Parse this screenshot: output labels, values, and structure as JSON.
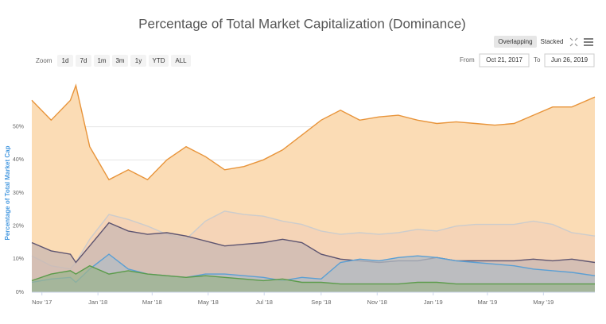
{
  "chart_data": {
    "type": "area",
    "title": "Percentage of Total Market Capitalization (Dominance)",
    "y_axis_label": "Percentage of Total Market Cap",
    "controls": {
      "zoom_label": "Zoom",
      "ranges": [
        "1d",
        "7d",
        "1m",
        "3m",
        "1y",
        "YTD",
        "ALL"
      ],
      "modes": [
        "Overlapping",
        "Stacked"
      ],
      "from_label": "From",
      "from": "Oct 21, 2017",
      "to_label": "To",
      "to": "Jun 26, 2019"
    },
    "x": [
      "2017-10-21",
      "2017-11-11",
      "2017-12-02",
      "2017-12-08",
      "2017-12-23",
      "2018-01-13",
      "2018-02-03",
      "2018-02-24",
      "2018-03-17",
      "2018-04-07",
      "2018-04-28",
      "2018-05-19",
      "2018-06-09",
      "2018-06-30",
      "2018-07-21",
      "2018-08-11",
      "2018-09-01",
      "2018-09-22",
      "2018-10-13",
      "2018-11-03",
      "2018-11-24",
      "2018-12-15",
      "2019-01-05",
      "2019-01-26",
      "2019-02-16",
      "2019-03-09",
      "2019-03-30",
      "2019-04-20",
      "2019-05-11",
      "2019-06-01",
      "2019-06-26"
    ],
    "xlim": [
      "2017-10-21",
      "2019-06-26"
    ],
    "xticks": [
      {
        "value": "2017-11-01",
        "label": "Nov '17"
      },
      {
        "value": "2018-01-01",
        "label": "Jan '18"
      },
      {
        "value": "2018-03-01",
        "label": "Mar '18"
      },
      {
        "value": "2018-05-01",
        "label": "May '18"
      },
      {
        "value": "2018-07-01",
        "label": "Jul '18"
      },
      {
        "value": "2018-09-01",
        "label": "Sep '18"
      },
      {
        "value": "2018-11-01",
        "label": "Nov '18"
      },
      {
        "value": "2019-01-01",
        "label": "Jan '19"
      },
      {
        "value": "2019-03-01",
        "label": "Mar '19"
      },
      {
        "value": "2019-05-01",
        "label": "May '19"
      }
    ],
    "ylim": [
      0,
      60
    ],
    "yticks": [
      {
        "value": 0,
        "label": "0%"
      },
      {
        "value": 10,
        "label": "10%"
      },
      {
        "value": 20,
        "label": "20%"
      },
      {
        "value": 30,
        "label": "30%"
      },
      {
        "value": 40,
        "label": "40%"
      },
      {
        "value": 50,
        "label": "50%"
      }
    ],
    "grid": true,
    "series": [
      {
        "color": "#e8943a",
        "fill": "#fbdcb5",
        "values": [
          58,
          52,
          58,
          62.5,
          44,
          34,
          37,
          34,
          40,
          44,
          41,
          37,
          38,
          40,
          43,
          47.5,
          52,
          55,
          52,
          53,
          53.5,
          52,
          51,
          51.5,
          51,
          50.5,
          51,
          53.5,
          56,
          56,
          59
        ]
      },
      {
        "color": "#cccccc",
        "fill": "#f3d2b8",
        "values": [
          11,
          8,
          7,
          9,
          16,
          23.5,
          22,
          20,
          17.5,
          16,
          21.5,
          24.5,
          23.5,
          23,
          21.5,
          20.5,
          18.5,
          17.5,
          18,
          17.5,
          18,
          19,
          18.5,
          20,
          20.5,
          20.5,
          20.5,
          21.5,
          20.5,
          18,
          17
        ]
      },
      {
        "color": "#5d5470",
        "fill": "#c9b8b3",
        "values": [
          15,
          12.5,
          11.5,
          9,
          14,
          21,
          18.5,
          17.5,
          18,
          17,
          15.5,
          14,
          14.5,
          15,
          16,
          15,
          11.5,
          10,
          9.5,
          9,
          9.5,
          9.5,
          10.5,
          9.5,
          9.5,
          9.5,
          9.5,
          10,
          9.5,
          10,
          9
        ]
      },
      {
        "color": "#5a9fd4",
        "fill": "#b3bcc4",
        "values": [
          3,
          4,
          4.5,
          3,
          7,
          11.5,
          7,
          5.5,
          5,
          4.5,
          5.5,
          5.5,
          5,
          4.5,
          3.5,
          4.5,
          4,
          9,
          10,
          9.5,
          10.5,
          11,
          10.5,
          9.5,
          9,
          8.5,
          8,
          7,
          6.5,
          6,
          5
        ]
      },
      {
        "color": "#5b9b4a",
        "fill": "#9eb48f",
        "values": [
          3.5,
          5.5,
          6.5,
          5.5,
          8,
          5.5,
          6.5,
          5.5,
          5,
          4.5,
          5,
          4.5,
          4,
          3.5,
          4,
          3,
          3,
          2.5,
          2.5,
          2.5,
          2.5,
          3,
          3,
          2.5,
          2.5,
          2.5,
          2.5,
          2.5,
          2.5,
          2.5,
          2.5
        ]
      }
    ]
  }
}
